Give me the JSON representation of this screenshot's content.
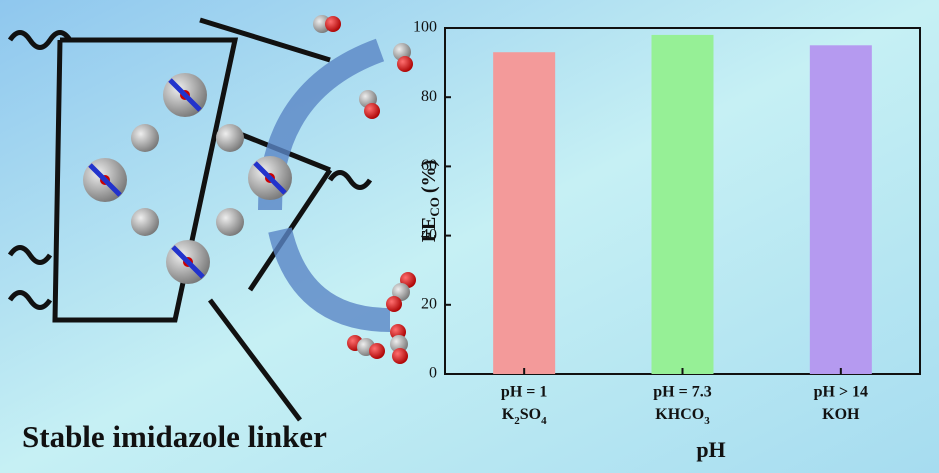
{
  "caption": "Stable imidazole linker",
  "chart_data": {
    "type": "bar",
    "y_label": {
      "main": "FE",
      "sub": "CO",
      "unit": "(%)"
    },
    "x_label": "pH",
    "categories": [
      "pH = 1",
      "pH = 7.3",
      "pH > 14"
    ],
    "electrolytes": [
      "K2SO4",
      "KHCO3",
      "KOH"
    ],
    "values": [
      93,
      98,
      95
    ],
    "colors": [
      "#f39a9a",
      "#96f096",
      "#b59af0"
    ],
    "ylim": [
      0,
      100
    ],
    "yticks": [
      0,
      20,
      40,
      60,
      80,
      100
    ]
  }
}
